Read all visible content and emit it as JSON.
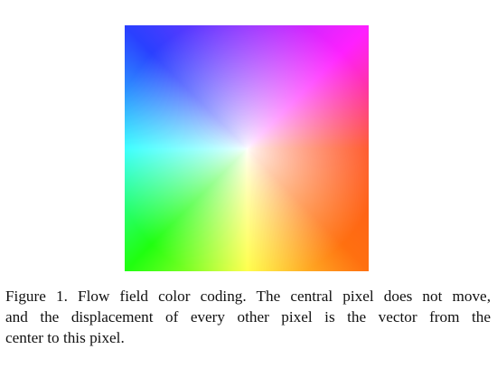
{
  "figure": {
    "caption_lines": [
      "Figure 1. Flow field color coding. The central pixel does not move,",
      "and the displacement of every other pixel is the vector from the",
      "center to this pixel."
    ]
  },
  "color_wheel": {
    "right": "#ff5020",
    "upper_right": "#ff20ff",
    "upper_left": "#2a40ff",
    "left": "#30ffff",
    "lower_left": "#20ff10",
    "down": "#ffff40",
    "lower_right": "#ff7010",
    "center": "#ffffff"
  }
}
